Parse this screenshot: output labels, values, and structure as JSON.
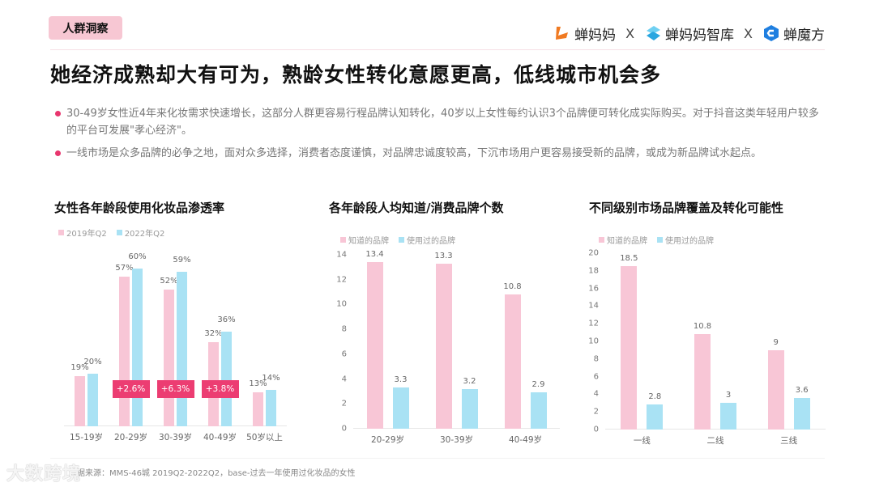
{
  "header": {
    "tag": "人群洞察",
    "logos": [
      {
        "name": "蝉妈妈",
        "icon": "chanmama-logo",
        "color": "#f07a22"
      },
      {
        "name": "蝉妈妈智库",
        "icon": "chanmama-zhiku-logo",
        "color": "#3bb7e8"
      },
      {
        "name": "蝉魔方",
        "icon": "chanmofang-logo",
        "color": "#1f7fe0"
      }
    ],
    "separator": "X",
    "headline": "她经济成熟却大有可为，熟龄女性转化意愿更高，低线城市机会多"
  },
  "bullets": [
    "30-49岁女性近4年来化妆需求快速增长，这部分人群更容易行程品牌认知转化，40岁以上女性每约认识3个品牌便可转化成实际购买。对于抖音这类年轻用户较多的平台可发展\"孝心经济\"。",
    "一线市场是众多品牌的必争之地，面对众多选择，消费者态度谨慎，对品牌忠诚度较高，下沉市场用户更容易接受新的品牌，或成为新品牌试水起点。"
  ],
  "colors": {
    "pink": "#f8c6d6",
    "blue": "#a9e2f4",
    "accent": "#ec3d72"
  },
  "chart_data": [
    {
      "type": "bar",
      "title": "女性各年龄段使用化妆品渗透率",
      "categories": [
        "15-19岁",
        "20-29岁",
        "30-39岁",
        "40-49岁",
        "50岁以上"
      ],
      "series": [
        {
          "name": "2019年Q2",
          "values": [
            19,
            57,
            52,
            32,
            13
          ],
          "labels": [
            "19%",
            "57%",
            "52%",
            "32%",
            "13%"
          ]
        },
        {
          "name": "2022年Q2",
          "values": [
            20,
            60,
            59,
            36,
            14
          ],
          "labels": [
            "20%",
            "60%",
            "59%",
            "36%",
            "14%"
          ]
        }
      ],
      "annotations": [
        {
          "category": "20-29岁",
          "text": "+2.6%"
        },
        {
          "category": "30-39岁",
          "text": "+6.3%"
        },
        {
          "category": "40-49岁",
          "text": "+3.8%"
        }
      ],
      "xlabel": "",
      "ylabel": "",
      "ylim": [
        0,
        70
      ],
      "grid": false,
      "legend_position": "top-left"
    },
    {
      "type": "bar",
      "title": "各年龄段人均知道/消费品牌个数",
      "categories": [
        "20-29岁",
        "30-39岁",
        "40-49岁"
      ],
      "series": [
        {
          "name": "知道的品牌",
          "values": [
            13.4,
            13.3,
            10.8
          ],
          "labels": [
            "13.4",
            "13.3",
            "10.8"
          ]
        },
        {
          "name": "使用过的品牌",
          "values": [
            3.3,
            3.2,
            2.9
          ],
          "labels": [
            "3.3",
            "3.2",
            "2.9"
          ]
        }
      ],
      "yticks": [
        "0",
        "2",
        "4",
        "6",
        "8",
        "10",
        "12",
        "14"
      ],
      "xlabel": "",
      "ylabel": "",
      "ylim": [
        0,
        14
      ],
      "grid": false,
      "legend_position": "top-left"
    },
    {
      "type": "bar",
      "title": "不同级别市场品牌覆盖及转化可能性",
      "categories": [
        "一线",
        "二线",
        "三线"
      ],
      "series": [
        {
          "name": "知道的品牌",
          "values": [
            18.5,
            10.8,
            9
          ],
          "labels": [
            "18.5",
            "10.8",
            "9"
          ]
        },
        {
          "name": "使用过的品牌",
          "values": [
            2.8,
            3,
            3.6
          ],
          "labels": [
            "2.8",
            "3",
            "3.6"
          ]
        }
      ],
      "yticks": [
        "0",
        "2",
        "4",
        "6",
        "8",
        "10",
        "12",
        "14",
        "16",
        "18",
        "20"
      ],
      "xlabel": "",
      "ylabel": "",
      "ylim": [
        0,
        20
      ],
      "grid": false,
      "legend_position": "top-left"
    }
  ],
  "footer": {
    "source": "数据来源：MMS-46城 2019Q2-2022Q2，base-过去一年使用过化妆品的女性",
    "watermark": "大数跨境"
  }
}
